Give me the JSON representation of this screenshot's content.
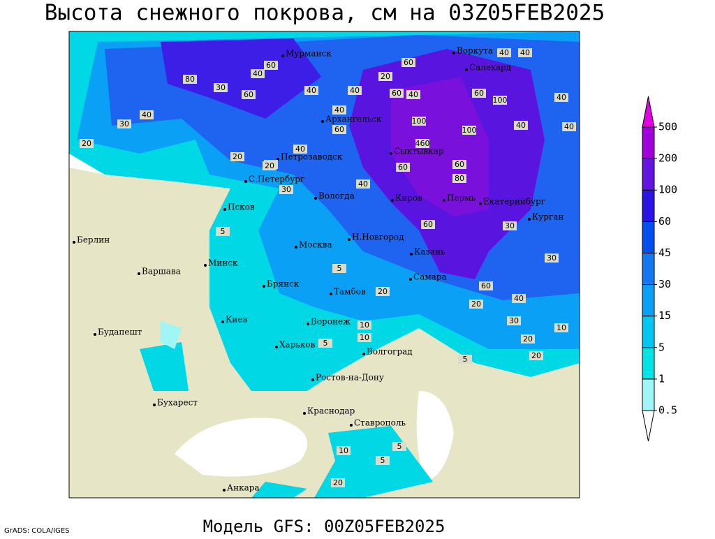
{
  "title": "Высота снежного покрова, см на 03Z05FEB2025",
  "footer": "Модель GFS: 00Z05FEB2025",
  "credit": "GrADS: COLA/IGES",
  "colorbar": {
    "levels": [
      0.5,
      1,
      5,
      15,
      30,
      45,
      60,
      100,
      200,
      500
    ],
    "colors": [
      "#a0f5f5",
      "#00e6e6",
      "#00c8f5",
      "#0aa0f5",
      "#1478f5",
      "#0050f0",
      "#2a14e6",
      "#6414e0",
      "#a000dc",
      "#e000e0"
    ]
  },
  "cities": [
    "Мурманск",
    "Воркута",
    "Салехард",
    "Архангельск",
    "Сыктывкар",
    "Петрозаводск",
    "С.Петербург",
    "Вологда",
    "Киров",
    "Пермь",
    "Екатеринбург",
    "Курган",
    "Псков",
    "Н.Новгород",
    "Москва",
    "Казань",
    "Берлин",
    "Минск",
    "Варшава",
    "Брянск",
    "Самара",
    "Тамбов",
    "Воронеж",
    "Киев",
    "Харьков",
    "Волгоград",
    "Будапешт",
    "Ростов-на-Дону",
    "Бухарест",
    "Краснодар",
    "Ставрополь",
    "Анкара"
  ],
  "contour_labels": [
    40,
    60,
    40,
    80,
    30,
    60,
    40,
    40,
    30,
    20,
    40,
    60,
    20,
    40,
    60,
    40,
    40,
    60,
    100,
    40,
    100,
    60,
    100,
    40,
    460,
    40,
    60,
    80,
    60,
    40,
    30,
    20,
    30,
    40,
    60,
    5,
    5,
    60,
    30,
    30,
    20,
    40,
    20,
    10,
    5,
    10,
    5,
    20,
    30,
    10,
    20,
    5,
    10,
    5,
    20,
    20
  ]
}
